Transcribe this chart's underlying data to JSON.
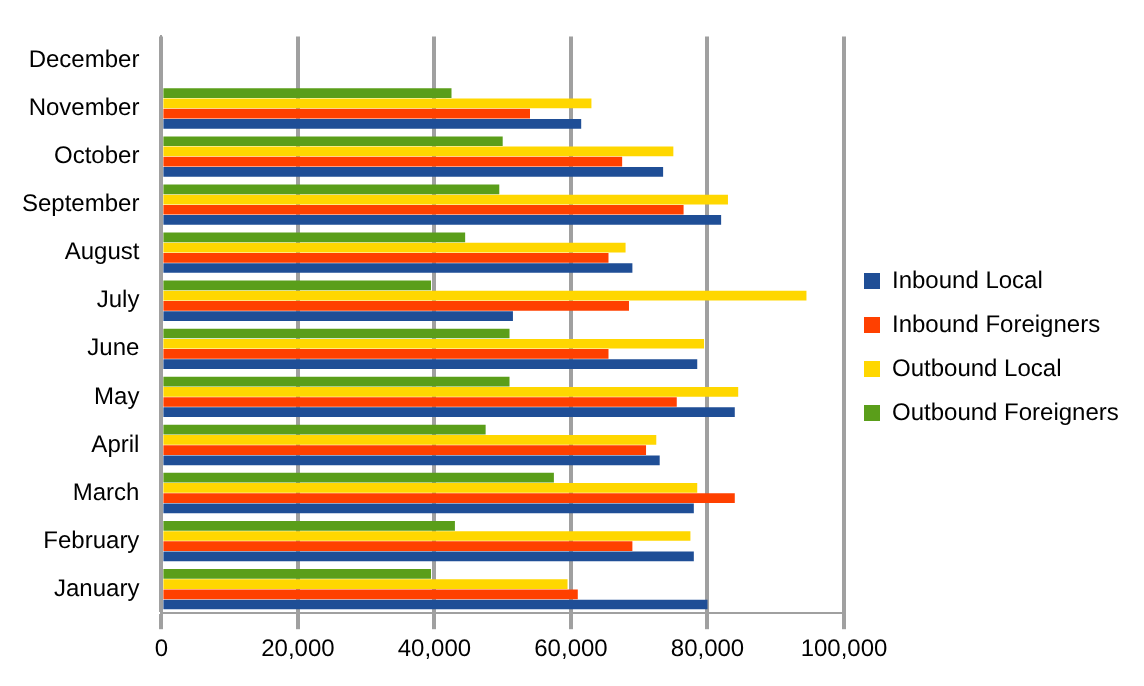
{
  "chart_data": {
    "type": "bar",
    "orientation": "horizontal",
    "categories": [
      "December",
      "November",
      "October",
      "September",
      "August",
      "July",
      "June",
      "May",
      "April",
      "March",
      "February",
      "January"
    ],
    "series": [
      {
        "name": "Inbound Local",
        "color": "#1f4e96",
        "values": [
          null,
          61500,
          73500,
          82000,
          69000,
          51500,
          78500,
          84000,
          73000,
          78000,
          78000,
          80000
        ]
      },
      {
        "name": "Inbound Foreigners",
        "color": "#ff4000",
        "values": [
          null,
          54000,
          67500,
          76500,
          65500,
          68500,
          65500,
          75500,
          71000,
          84000,
          69000,
          61000
        ]
      },
      {
        "name": "Outbound Local",
        "color": "#ffd700",
        "values": [
          null,
          63000,
          75000,
          83000,
          68000,
          94500,
          79500,
          84500,
          72500,
          78500,
          77500,
          59500
        ]
      },
      {
        "name": "Outbound Foreigners",
        "color": "#5a9e1a",
        "values": [
          null,
          42500,
          50000,
          49500,
          44500,
          39500,
          51000,
          51000,
          47500,
          57500,
          43000,
          39500
        ]
      }
    ],
    "xlim": [
      0,
      100000
    ],
    "xticks": [
      {
        "value": 0,
        "label": "0"
      },
      {
        "value": 20000,
        "label": "20,000"
      },
      {
        "value": 40000,
        "label": "40,000"
      },
      {
        "value": 60000,
        "label": "60,000"
      },
      {
        "value": 80000,
        "label": "80,000"
      },
      {
        "value": 100000,
        "label": "100,000"
      }
    ],
    "grid": "x",
    "legend": "right"
  }
}
